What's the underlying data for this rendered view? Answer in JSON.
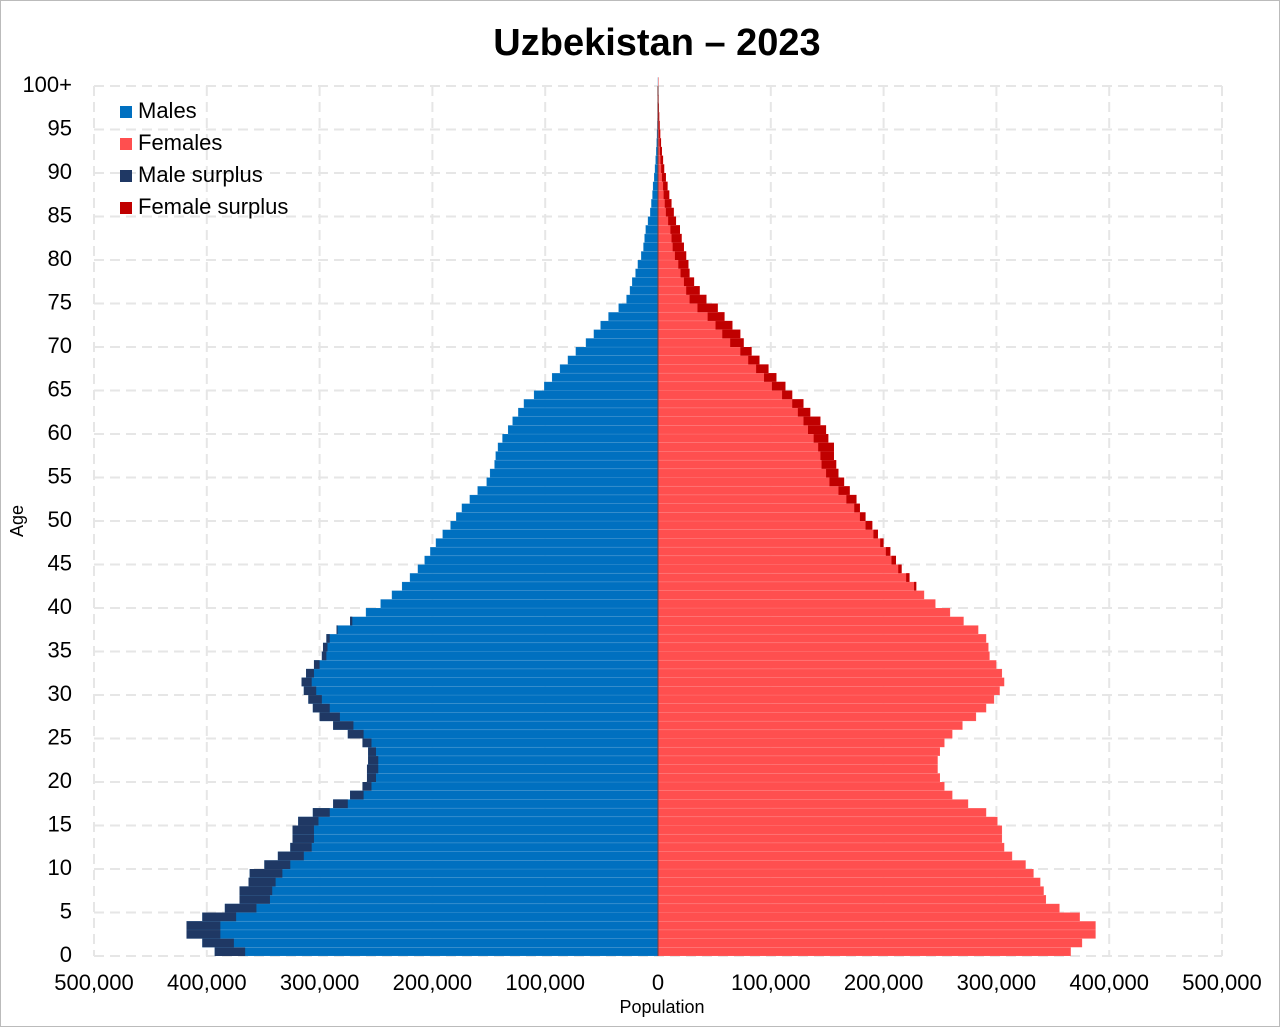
{
  "chart_data": {
    "type": "population_pyramid",
    "title": "Uzbekistan – 2023",
    "xlabel": "Population",
    "ylabel": "Age",
    "grid": true,
    "legend_position": "upper-left",
    "xlim": [
      -500000,
      500000
    ],
    "xticks": [
      {
        "value": -500000,
        "label": "500,000"
      },
      {
        "value": -400000,
        "label": "400,000"
      },
      {
        "value": -300000,
        "label": "300,000"
      },
      {
        "value": -200000,
        "label": "200,000"
      },
      {
        "value": -100000,
        "label": "100,000"
      },
      0,
      {
        "value": 100000,
        "label": "100,000"
      },
      {
        "value": 200000,
        "label": "200,000"
      },
      {
        "value": 300000,
        "label": "300,000"
      },
      {
        "value": 400000,
        "label": "400,000"
      },
      {
        "value": 500000,
        "label": "500,000"
      }
    ],
    "ylim": [
      0,
      100
    ],
    "yticks": [
      0,
      5,
      10,
      15,
      20,
      25,
      30,
      35,
      40,
      45,
      50,
      55,
      60,
      65,
      70,
      75,
      80,
      85,
      90,
      95,
      {
        "value": 100,
        "label": "100+"
      }
    ],
    "y": [
      0,
      1,
      2,
      3,
      4,
      5,
      6,
      7,
      8,
      9,
      10,
      11,
      12,
      13,
      14,
      15,
      16,
      17,
      18,
      19,
      20,
      21,
      22,
      23,
      24,
      25,
      26,
      27,
      28,
      29,
      30,
      31,
      32,
      33,
      34,
      35,
      36,
      37,
      38,
      39,
      40,
      41,
      42,
      43,
      44,
      45,
      46,
      47,
      48,
      49,
      50,
      51,
      52,
      53,
      54,
      55,
      56,
      57,
      58,
      59,
      60,
      61,
      62,
      63,
      64,
      65,
      66,
      67,
      68,
      69,
      70,
      71,
      72,
      73,
      74,
      75,
      76,
      77,
      78,
      79,
      80,
      81,
      82,
      83,
      84,
      85,
      86,
      87,
      88,
      89,
      90,
      91,
      92,
      93,
      94,
      95,
      96,
      97,
      98,
      99,
      100
    ],
    "series": [
      {
        "name": "Males",
        "color": "#0070c0",
        "surplus_name": "Male surplus",
        "surplus_color": "#1f3864",
        "side": "left",
        "values": [
          393000,
          404000,
          418000,
          418000,
          404000,
          384000,
          371000,
          371000,
          363000,
          362000,
          349000,
          337000,
          326000,
          324000,
          324000,
          319000,
          306000,
          288000,
          273000,
          262000,
          258000,
          258000,
          257000,
          257000,
          262000,
          275000,
          288000,
          300000,
          306000,
          310000,
          314000,
          316000,
          312000,
          305000,
          298000,
          297000,
          294000,
          285000,
          273000,
          259000,
          246000,
          236000,
          227000,
          220000,
          213000,
          207000,
          202000,
          197000,
          191000,
          184000,
          179000,
          174000,
          167000,
          160000,
          152000,
          149000,
          145000,
          144000,
          142000,
          138000,
          133000,
          129000,
          124000,
          119000,
          110000,
          101000,
          94000,
          87000,
          80000,
          73000,
          64000,
          57000,
          51000,
          44000,
          35000,
          28000,
          25000,
          23000,
          20000,
          18000,
          15000,
          13000,
          12000,
          11000,
          9000,
          7000,
          6000,
          5000,
          4500,
          3500,
          2800,
          2200,
          1700,
          1300,
          1000,
          700,
          500,
          350,
          250,
          150,
          200
        ]
      },
      {
        "name": "Females",
        "color": "#ff4f4f",
        "surplus_name": "Female surplus",
        "surplus_color": "#c00000",
        "side": "right",
        "values": [
          366000,
          376000,
          388000,
          388000,
          374000,
          356000,
          344000,
          342000,
          339000,
          333000,
          326000,
          314000,
          307000,
          305000,
          305000,
          301000,
          291000,
          275000,
          261000,
          254000,
          250000,
          248000,
          248000,
          250000,
          254000,
          261000,
          270000,
          282000,
          291000,
          298000,
          303000,
          307000,
          305000,
          300000,
          294000,
          293000,
          291000,
          284000,
          271000,
          259000,
          246000,
          236000,
          229000,
          223000,
          216000,
          211000,
          206000,
          200000,
          195000,
          190000,
          184000,
          179000,
          176000,
          170000,
          165000,
          160000,
          158000,
          156000,
          156000,
          151000,
          149000,
          144000,
          135000,
          129000,
          119000,
          113000,
          105000,
          98000,
          90000,
          83000,
          76000,
          73000,
          66000,
          59000,
          53000,
          43000,
          37000,
          32000,
          28000,
          27000,
          25000,
          23000,
          21000,
          19500,
          16000,
          14000,
          12000,
          10000,
          8500,
          7000,
          5500,
          4500,
          3500,
          2700,
          2000,
          1500,
          1100,
          800,
          550,
          350,
          400
        ]
      }
    ]
  }
}
